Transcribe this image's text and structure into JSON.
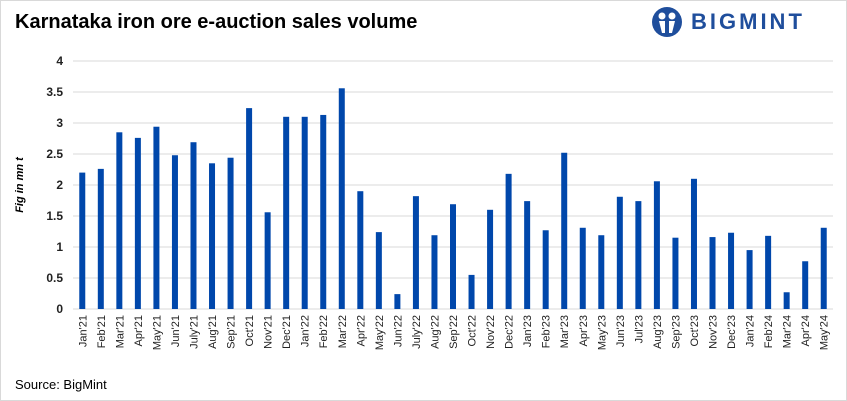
{
  "title": "Karnataka iron ore e-auction sales volume",
  "logo": {
    "text": "BIGMINT"
  },
  "source": "Source: BigMint",
  "colors": {
    "bar": "#0047ab",
    "grid": "#d9d9d9",
    "logo": "#1f4e9c"
  },
  "chart_data": {
    "type": "bar",
    "title": "Karnataka iron ore e-auction sales volume",
    "xlabel": "",
    "ylabel": "Fig in mn t",
    "ylim": [
      0,
      4
    ],
    "yticks": [
      0,
      0.5,
      1,
      1.5,
      2,
      2.5,
      3,
      3.5,
      4
    ],
    "ytick_labels": [
      "0",
      "0.5",
      "1",
      "1.5",
      "2",
      "2.5",
      "3",
      "3.5",
      "4"
    ],
    "grid": true,
    "legend": "none",
    "categories": [
      "Jan'21",
      "Feb'21",
      "Mar'21",
      "Apr'21",
      "May'21",
      "Jun'21",
      "July'21",
      "Aug'21",
      "Sep'21",
      "Oct'21",
      "Nov'21",
      "Dec'21",
      "Jan'22",
      "Feb'22",
      "Mar'22",
      "Apr'22",
      "May'22",
      "Jun'22",
      "July'22",
      "Aug'22",
      "Sep'22",
      "Oct'22",
      "Nov'22",
      "Dec'22",
      "Jan'23",
      "Feb'23",
      "Mar'23",
      "Apr'23",
      "May'23",
      "Jun'23",
      "Jul'23",
      "Aug'23",
      "Sep'23",
      "Oct'23",
      "Nov'23",
      "Dec'23",
      "Jan'24",
      "Feb'24",
      "Mar'24",
      "Apr'24",
      "May'24"
    ],
    "values": [
      2.2,
      2.26,
      2.85,
      2.76,
      2.94,
      2.48,
      2.69,
      2.35,
      2.44,
      3.24,
      1.56,
      3.1,
      3.1,
      3.13,
      3.56,
      1.9,
      1.24,
      0.24,
      1.82,
      1.19,
      1.69,
      0.55,
      1.6,
      2.18,
      1.74,
      1.27,
      2.52,
      1.31,
      1.19,
      1.81,
      1.74,
      2.06,
      1.15,
      2.1,
      1.16,
      1.23,
      0.95,
      1.18,
      0.27,
      0.77,
      1.31
    ]
  }
}
